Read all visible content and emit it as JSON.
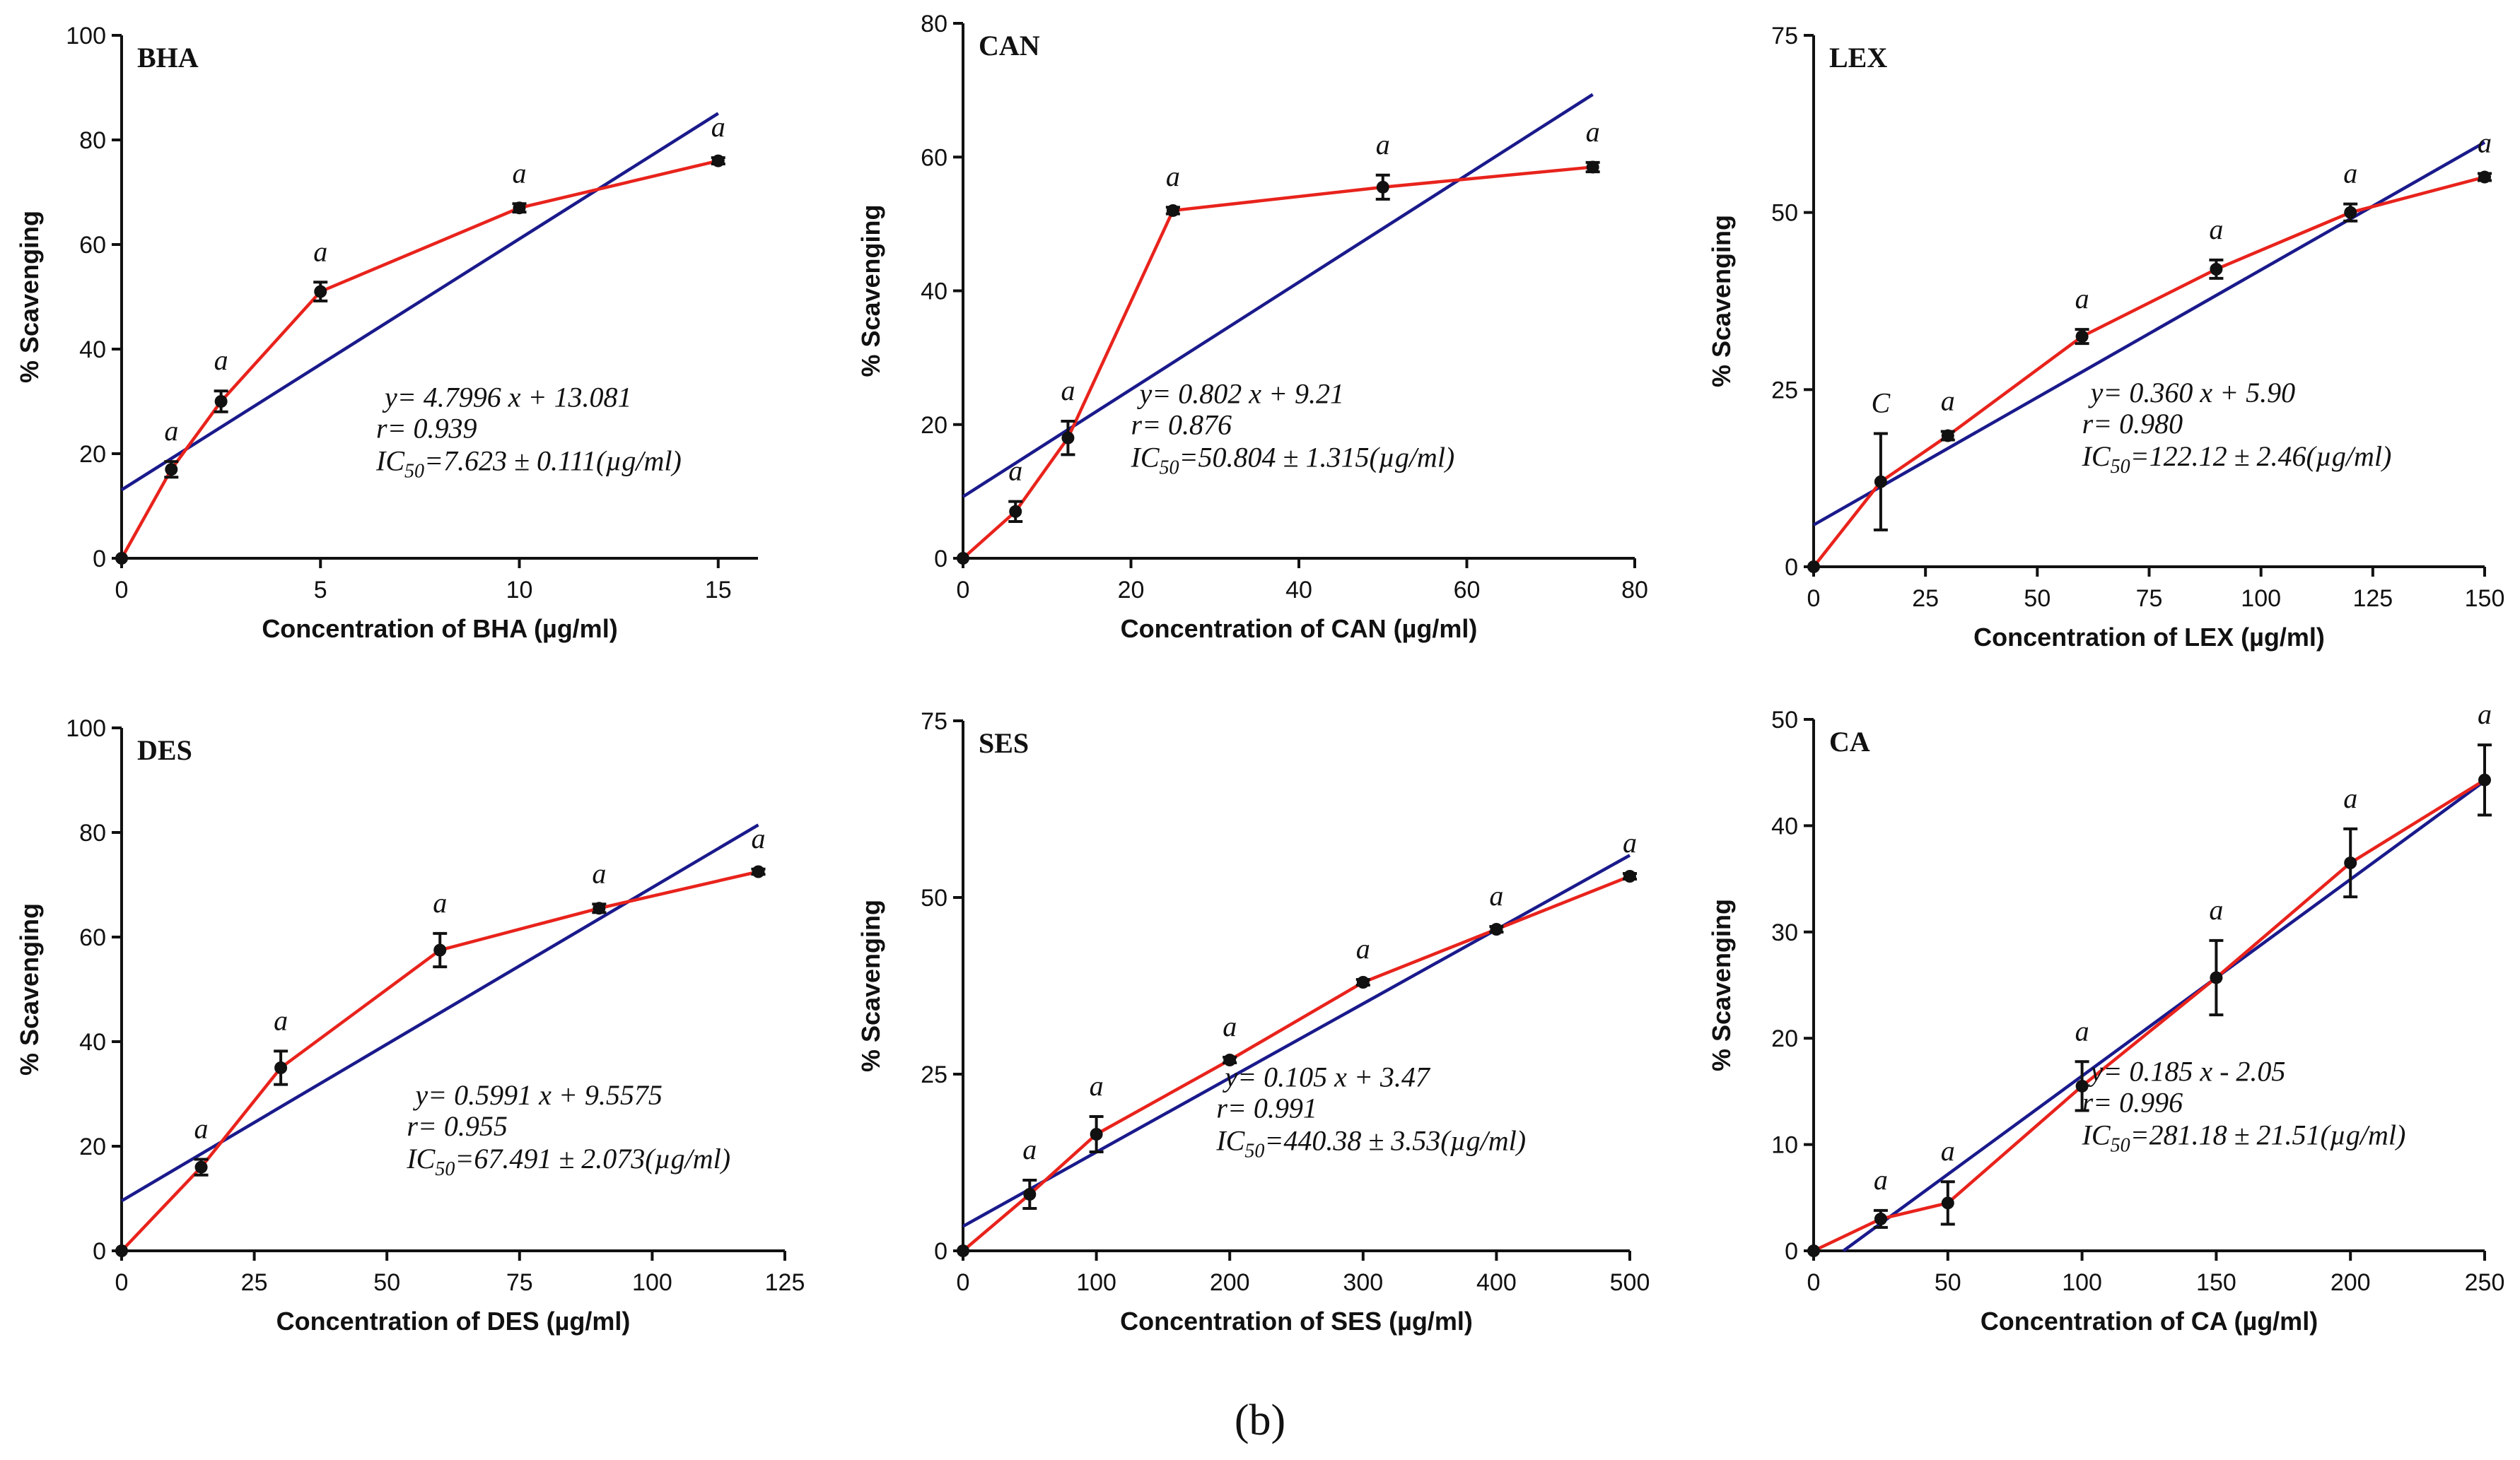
{
  "figure_label": "(b)",
  "chart_data": [
    {
      "type": "line",
      "title": "BHA",
      "xlabel": "Concentration of BHA (µg/ml)",
      "ylabel": "% Scavenging",
      "xlim": [
        0,
        16
      ],
      "ylim": [
        0,
        100
      ],
      "xticks": [
        0,
        5,
        10,
        15
      ],
      "yticks": [
        0,
        20,
        40,
        60,
        80,
        100
      ],
      "x": [
        0,
        1.25,
        2.5,
        5,
        10,
        15
      ],
      "y": [
        0,
        17,
        30,
        51,
        67,
        76
      ],
      "err": [
        0,
        1.5,
        2,
        1.8,
        0.8,
        0.6
      ],
      "sig": [
        "",
        "a",
        "a",
        "a",
        "a",
        "a"
      ],
      "fit": {
        "slope": 4.7996,
        "intercept": 13.081,
        "x_range": [
          0,
          15
        ]
      },
      "annotation": {
        "eq": "y= 4.7996 x + 13.081",
        "r": "r= 0.939",
        "ic_prefix": "IC",
        "ic_sub": "50",
        "ic_value": "=7.623 ± 0.111(µg/ml)"
      }
    },
    {
      "type": "line",
      "title": "CAN",
      "xlabel": "Concentration of CAN (µg/ml)",
      "ylabel": "% Scavenging",
      "xlim": [
        0,
        80
      ],
      "ylim": [
        0,
        80
      ],
      "xticks": [
        0,
        20,
        40,
        60,
        80
      ],
      "yticks": [
        0,
        20,
        40,
        60,
        80
      ],
      "x": [
        0,
        6.25,
        12.5,
        25,
        50,
        75
      ],
      "y": [
        0,
        7,
        18,
        52,
        55.5,
        58.5
      ],
      "err": [
        0,
        1.5,
        2.5,
        0.5,
        1.8,
        0.7
      ],
      "sig": [
        "",
        "a",
        "a",
        "a",
        "a",
        "a"
      ],
      "fit": {
        "slope": 0.802,
        "intercept": 9.21,
        "x_range": [
          0,
          75
        ]
      },
      "annotation": {
        "eq": "y= 0.802 x + 9.21",
        "r": "r= 0.876",
        "ic_prefix": "IC",
        "ic_sub": "50",
        "ic_value": "=50.804 ± 1.315(µg/ml)"
      }
    },
    {
      "type": "line",
      "title": "LEX",
      "xlabel": "Concentration of  LEX (µg/ml)",
      "ylabel": "% Scavenging",
      "xlim": [
        0,
        150
      ],
      "ylim": [
        0,
        75
      ],
      "xticks": [
        0,
        25,
        50,
        75,
        100,
        125,
        150
      ],
      "yticks": [
        0,
        25,
        50,
        75
      ],
      "x": [
        0,
        15,
        30,
        60,
        90,
        120,
        150
      ],
      "y": [
        0,
        12,
        18.5,
        32.5,
        42,
        50,
        55
      ],
      "err": [
        0,
        6.8,
        0.6,
        1,
        1.3,
        1.2,
        0.5
      ],
      "sig": [
        "",
        "C",
        "a",
        "a",
        "a",
        "a",
        "a"
      ],
      "fit": {
        "slope": 0.36,
        "intercept": 5.9,
        "x_range": [
          0,
          150
        ]
      },
      "annotation": {
        "eq": "y= 0.360 x + 5.90",
        "r": "r= 0.980",
        "ic_prefix": "IC",
        "ic_sub": "50",
        "ic_value": "=122.12 ± 2.46(µg/ml)"
      }
    },
    {
      "type": "line",
      "title": "DES",
      "xlabel": "Concentration of DES (µg/ml)",
      "ylabel": "% Scavenging",
      "xlim": [
        0,
        125
      ],
      "ylim": [
        0,
        100
      ],
      "xticks": [
        0,
        25,
        50,
        75,
        100,
        125
      ],
      "yticks": [
        0,
        20,
        40,
        60,
        80,
        100
      ],
      "x": [
        0,
        15,
        30,
        60,
        90,
        120
      ],
      "y": [
        0,
        16,
        35,
        57.5,
        65.5,
        72.5
      ],
      "err": [
        0,
        1.5,
        3.2,
        3.2,
        0.8,
        0.5
      ],
      "sig": [
        "",
        "a",
        "a",
        "a",
        "a",
        "a"
      ],
      "fit": {
        "slope": 0.5991,
        "intercept": 9.5575,
        "x_range": [
          0,
          120
        ]
      },
      "annotation": {
        "eq": "y= 0.5991 x + 9.5575",
        "r": "r= 0.955",
        "ic_prefix": "IC",
        "ic_sub": "50",
        "ic_value": "=67.491 ± 2.073(µg/ml)"
      }
    },
    {
      "type": "line",
      "title": "SES",
      "xlabel": "Concentration of  SES (µg/ml)",
      "ylabel": "% Scavenging",
      "xlim": [
        0,
        500
      ],
      "ylim": [
        0,
        75
      ],
      "xticks": [
        0,
        100,
        200,
        300,
        400,
        500
      ],
      "yticks": [
        0,
        25,
        50,
        75
      ],
      "x": [
        0,
        50,
        100,
        200,
        300,
        400,
        500
      ],
      "y": [
        0,
        8,
        16.5,
        27,
        38,
        45.5,
        53
      ],
      "err": [
        0,
        2,
        2.5,
        0.4,
        0.4,
        0.4,
        0.4
      ],
      "sig": [
        "",
        "a",
        "a",
        "a",
        "a",
        "a",
        "a"
      ],
      "fit": {
        "slope": 0.105,
        "intercept": 3.47,
        "x_range": [
          0,
          500
        ]
      },
      "annotation": {
        "eq": "y= 0.105 x + 3.47",
        "r": "r= 0.991",
        "ic_prefix": "IC",
        "ic_sub": "50",
        "ic_value": "=440.38 ± 3.53(µg/ml)"
      }
    },
    {
      "type": "line",
      "title": "CA",
      "xlabel": "Concentration of CA (µg/ml)",
      "ylabel": "% Scavenging",
      "xlim": [
        0,
        250
      ],
      "ylim": [
        0,
        50
      ],
      "xticks": [
        0,
        50,
        100,
        150,
        200,
        250
      ],
      "yticks": [
        0,
        10,
        20,
        30,
        40,
        50
      ],
      "x": [
        0,
        25,
        50,
        100,
        150,
        200,
        250
      ],
      "y": [
        0,
        3,
        4.5,
        15.5,
        25.7,
        36.5,
        44.3
      ],
      "err": [
        0,
        0.8,
        2,
        2.3,
        3.5,
        3.2,
        3.3
      ],
      "sig": [
        "",
        "a",
        "a",
        "a",
        "a",
        "a",
        "a"
      ],
      "fit": {
        "slope": 0.185,
        "intercept": -2.05,
        "x_range": [
          11.08,
          250
        ]
      },
      "annotation": {
        "eq": "y= 0.185 x - 2.05",
        "r": "r= 0.996",
        "ic_prefix": "IC",
        "ic_sub": "50",
        "ic_value": "=281.18 ± 21.51(µg/ml)"
      }
    }
  ]
}
